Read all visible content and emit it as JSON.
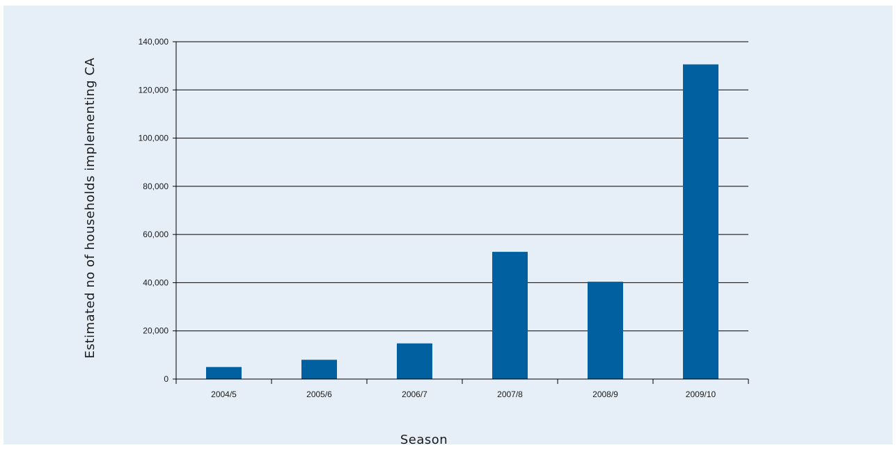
{
  "chart_data": {
    "type": "bar",
    "title": "",
    "xlabel": "Season",
    "ylabel": "Estimated no of households implementing CA",
    "categories": [
      "2004/5",
      "2005/6",
      "2006/7",
      "2007/8",
      "2008/9",
      "2009/10"
    ],
    "values": [
      5000,
      8000,
      14800,
      52800,
      40400,
      130600
    ],
    "ylim": [
      0,
      140000
    ],
    "yticks": [
      0,
      20000,
      40000,
      60000,
      80000,
      100000,
      120000,
      140000
    ],
    "ytick_labels": [
      "0",
      "20,000",
      "40,000",
      "60,000",
      "80,000",
      "100,000",
      "120,000",
      "140,000"
    ],
    "grid": true,
    "legend": "none",
    "colors": {
      "bar": "#0060a0",
      "background": "#e6eef7",
      "grid": "#000000"
    }
  }
}
